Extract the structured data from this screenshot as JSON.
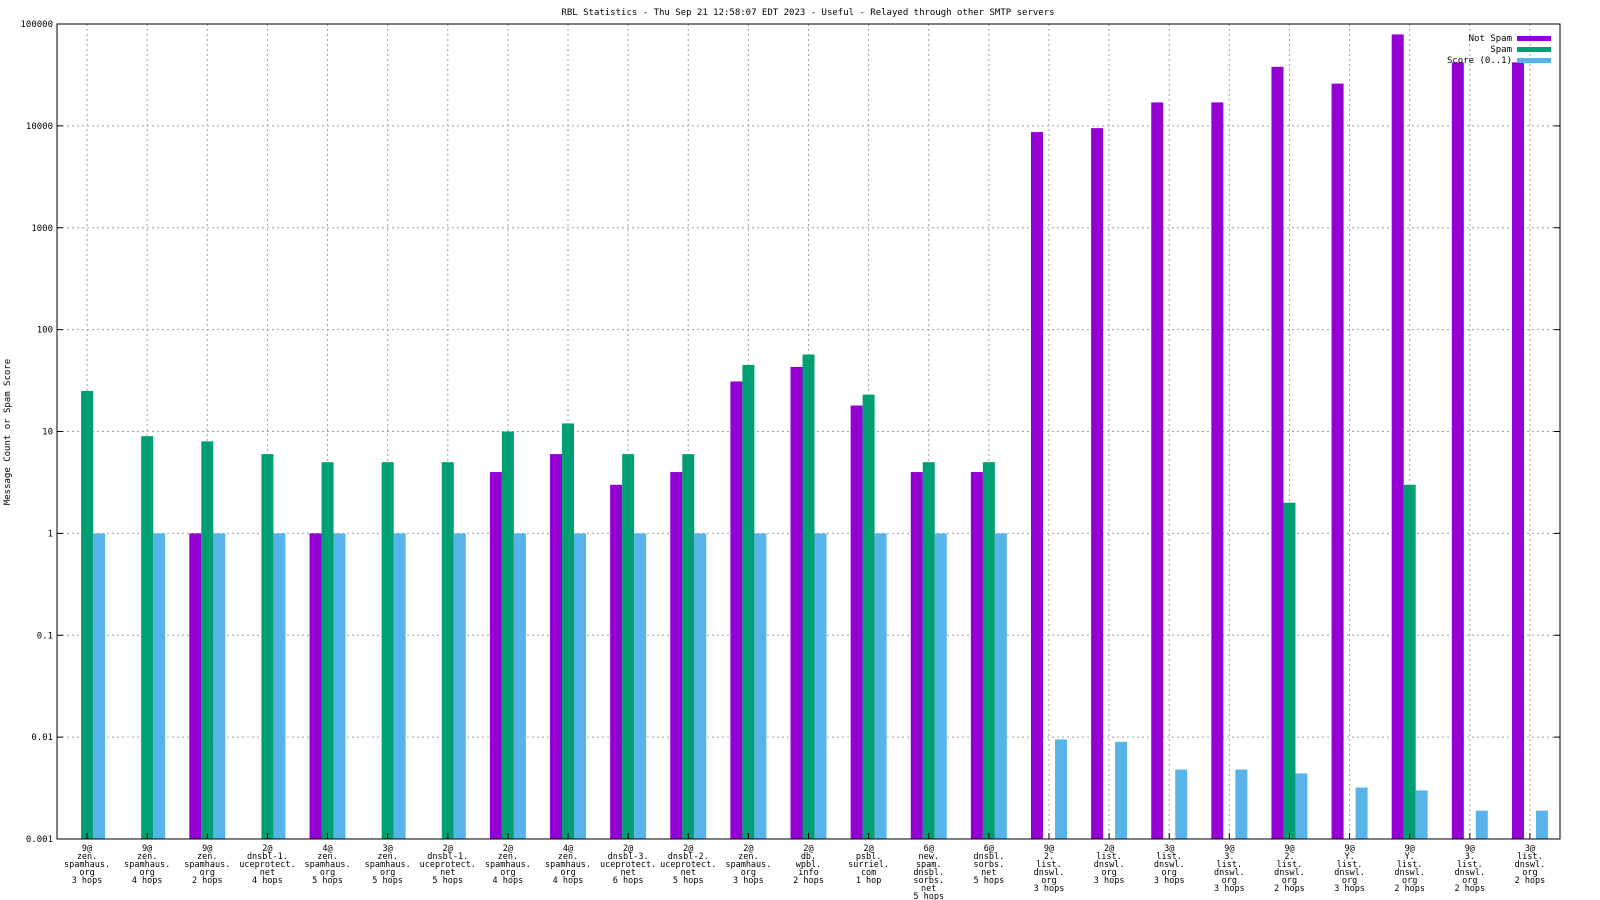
{
  "chart_data": {
    "type": "bar",
    "title": "RBL Statistics - Thu Sep 21 12:58:07 EDT 2023 - Useful - Relayed through other SMTP servers",
    "xlabel": "",
    "ylabel": "Message Count or Spam Score",
    "yscale": "log",
    "ylim": [
      0.001,
      100000
    ],
    "yticks": [
      "0.001",
      "0.01",
      "0.1",
      "1",
      "10",
      "100",
      "1000",
      "10000",
      "100000"
    ],
    "grid": true,
    "legend_position": "top-right",
    "categories": [
      [
        "9@",
        "zen.",
        "spamhaus.",
        "org",
        "3 hops"
      ],
      [
        "9@",
        "zen.",
        "spamhaus.",
        "org",
        "4 hops"
      ],
      [
        "9@",
        "zen.",
        "spamhaus.",
        "org",
        "2 hops"
      ],
      [
        "2@",
        "dnsbl-1.",
        "uceprotect.",
        "net",
        "4 hops"
      ],
      [
        "4@",
        "zen.",
        "spamhaus.",
        "org",
        "5 hops"
      ],
      [
        "3@",
        "zen.",
        "spamhaus.",
        "org",
        "5 hops"
      ],
      [
        "2@",
        "dnsbl-1.",
        "uceprotect.",
        "net",
        "5 hops"
      ],
      [
        "2@",
        "zen.",
        "spamhaus.",
        "org",
        "4 hops"
      ],
      [
        "4@",
        "zen.",
        "spamhaus.",
        "org",
        "4 hops"
      ],
      [
        "2@",
        "dnsbl-3.",
        "uceprotect.",
        "net",
        "6 hops"
      ],
      [
        "2@",
        "dnsbl-2.",
        "uceprotect.",
        "net",
        "5 hops"
      ],
      [
        "2@",
        "zen.",
        "spamhaus.",
        "org",
        "3 hops"
      ],
      [
        "2@",
        "db.",
        "wpbl.",
        "info",
        "2 hops"
      ],
      [
        "2@",
        "psbl.",
        "surriel.",
        "com",
        "1 hop"
      ],
      [
        "6@",
        "new.",
        "spam.",
        "dnsbl.",
        "sorbs.",
        "net",
        "5 hops"
      ],
      [
        "6@",
        "dnsbl.",
        "sorbs.",
        "net",
        "5 hops"
      ],
      [
        "9@",
        "2.",
        "list.",
        "dnswl.",
        "org",
        "3 hops"
      ],
      [
        "2@",
        "list.",
        "dnswl.",
        "org",
        "3 hops"
      ],
      [
        "3@",
        "list.",
        "dnswl.",
        "org",
        "3 hops"
      ],
      [
        "9@",
        "3.",
        "list.",
        "dnswl.",
        "org",
        "3 hops"
      ],
      [
        "9@",
        "2.",
        "list.",
        "dnswl.",
        "org",
        "2 hops"
      ],
      [
        "9@",
        "Y.",
        "list.",
        "dnswl.",
        "org",
        "3 hops"
      ],
      [
        "9@",
        "Y.",
        "list.",
        "dnswl.",
        "org",
        "2 hops"
      ],
      [
        "9@",
        "3.",
        "list.",
        "dnswl.",
        "org",
        "2 hops"
      ],
      [
        "3@",
        "list.",
        "dnswl.",
        "org",
        "2 hops"
      ]
    ],
    "series": [
      {
        "name": "Not Spam",
        "color": "#9400d3",
        "values": [
          null,
          null,
          1,
          null,
          1,
          null,
          null,
          4,
          6,
          3,
          4,
          31,
          43,
          18,
          4,
          4,
          8700,
          9500,
          17000,
          17000,
          38000,
          26000,
          79000,
          42000,
          42000
        ]
      },
      {
        "name": "Spam",
        "color": "#009e73",
        "values": [
          25,
          9,
          8,
          6,
          5,
          5,
          5,
          10,
          12,
          6,
          6,
          45,
          57,
          23,
          5,
          5,
          null,
          null,
          null,
          null,
          2,
          null,
          3,
          null,
          null
        ]
      },
      {
        "name": "Score (0..1)",
        "color": "#56b4e9",
        "values": [
          1,
          1,
          1,
          1,
          1,
          1,
          1,
          1,
          1,
          1,
          1,
          1,
          1,
          1,
          1,
          1,
          0.0095,
          0.009,
          0.0048,
          0.0048,
          0.0044,
          0.0032,
          0.003,
          0.0019,
          0.0019
        ]
      }
    ]
  }
}
